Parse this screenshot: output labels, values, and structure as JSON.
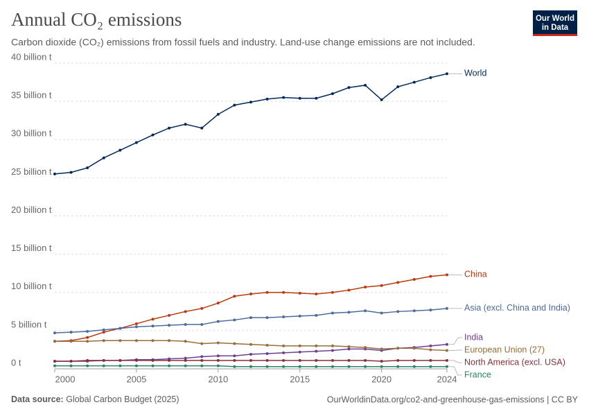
{
  "logo": [
    "Our World",
    "in Data"
  ],
  "footer": {
    "source_label": "Data source:",
    "source": "Global Carbon Budget (2025)",
    "url": "OurWorldinData.org/co2-and-greenhouse-gas-emissions | CC BY"
  },
  "chart_data": {
    "type": "line",
    "title": "Annual CO₂ emissions",
    "subtitle": "Carbon dioxide (CO₂) emissions from fossil fuels and industry. Land-use change emissions are not included.",
    "x": [
      2000,
      2001,
      2002,
      2003,
      2004,
      2005,
      2006,
      2007,
      2008,
      2009,
      2010,
      2011,
      2012,
      2013,
      2014,
      2015,
      2016,
      2017,
      2018,
      2019,
      2020,
      2021,
      2022,
      2023,
      2024
    ],
    "xlim": [
      2000,
      2024
    ],
    "xticks": [
      2000,
      2005,
      2010,
      2015,
      2020,
      2024
    ],
    "ylim": [
      0,
      40
    ],
    "yticks": [
      {
        "value": 0,
        "label": "0 t"
      },
      {
        "value": 5,
        "label": "5 billion t"
      },
      {
        "value": 10,
        "label": "10 billion t"
      },
      {
        "value": 15,
        "label": "15 billion t"
      },
      {
        "value": 20,
        "label": "20 billion t"
      },
      {
        "value": 25,
        "label": "25 billion t"
      },
      {
        "value": 30,
        "label": "30 billion t"
      },
      {
        "value": 35,
        "label": "35 billion t"
      },
      {
        "value": 40,
        "label": "40 billion t"
      }
    ],
    "grid": true,
    "series": [
      {
        "name": "World",
        "color": "#00295b",
        "values": [
          25.5,
          25.7,
          26.3,
          27.6,
          28.6,
          29.6,
          30.6,
          31.5,
          32.0,
          31.5,
          33.3,
          34.5,
          34.9,
          35.3,
          35.5,
          35.4,
          35.4,
          36.0,
          36.8,
          37.1,
          35.2,
          36.9,
          37.5,
          38.1,
          38.6
        ]
      },
      {
        "name": "China",
        "color": "#b83a0e",
        "values": [
          3.6,
          3.7,
          4.1,
          4.8,
          5.3,
          5.9,
          6.5,
          7.0,
          7.5,
          7.9,
          8.6,
          9.5,
          9.8,
          10.0,
          10.0,
          9.9,
          9.8,
          10.0,
          10.3,
          10.7,
          10.9,
          11.3,
          11.7,
          12.1,
          12.3
        ]
      },
      {
        "name": "Asia (excl. China and India)",
        "color": "#4c6a9c",
        "values": [
          4.7,
          4.8,
          4.9,
          5.1,
          5.3,
          5.5,
          5.6,
          5.7,
          5.8,
          5.8,
          6.2,
          6.4,
          6.7,
          6.7,
          6.8,
          6.9,
          7.0,
          7.3,
          7.4,
          7.6,
          7.3,
          7.5,
          7.6,
          7.7,
          7.9
        ]
      },
      {
        "name": "India",
        "color": "#6d3e91",
        "values": [
          1.0,
          1.0,
          1.0,
          1.1,
          1.1,
          1.2,
          1.2,
          1.3,
          1.4,
          1.6,
          1.7,
          1.7,
          1.9,
          2.0,
          2.1,
          2.2,
          2.3,
          2.4,
          2.6,
          2.6,
          2.4,
          2.7,
          2.8,
          3.0,
          3.2
        ]
      },
      {
        "name": "European Union (27)",
        "color": "#996d39",
        "values": [
          3.6,
          3.6,
          3.6,
          3.7,
          3.7,
          3.7,
          3.7,
          3.7,
          3.6,
          3.3,
          3.4,
          3.3,
          3.2,
          3.1,
          3.0,
          3.0,
          3.0,
          3.0,
          2.9,
          2.8,
          2.6,
          2.7,
          2.7,
          2.5,
          2.4
        ]
      },
      {
        "name": "North America (excl. USA)",
        "color": "#883039",
        "values": [
          1.0,
          1.0,
          1.1,
          1.1,
          1.1,
          1.1,
          1.1,
          1.1,
          1.1,
          1.1,
          1.1,
          1.1,
          1.1,
          1.1,
          1.1,
          1.1,
          1.1,
          1.1,
          1.1,
          1.1,
          1.0,
          1.1,
          1.1,
          1.1,
          1.1
        ]
      },
      {
        "name": "France",
        "color": "#2c8465",
        "values": [
          0.4,
          0.4,
          0.4,
          0.4,
          0.4,
          0.4,
          0.4,
          0.4,
          0.4,
          0.4,
          0.4,
          0.3,
          0.3,
          0.3,
          0.3,
          0.3,
          0.3,
          0.3,
          0.3,
          0.3,
          0.3,
          0.3,
          0.3,
          0.3,
          0.3
        ]
      }
    ]
  }
}
